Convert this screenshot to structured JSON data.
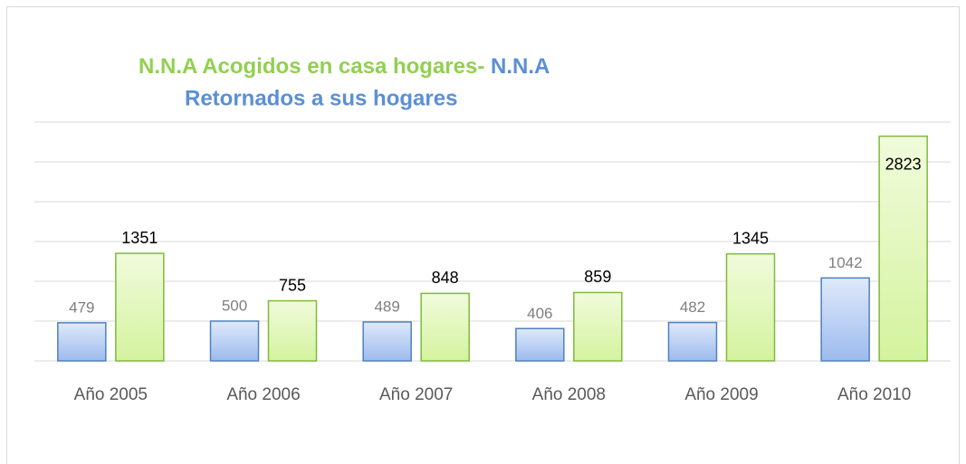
{
  "chart_data": {
    "type": "bar",
    "title": [
      {
        "text": "N.N.A Acogidos en casa hogares-",
        "color": "#92d050"
      },
      {
        "text": "N.N.A",
        "color": "#5b8fd6"
      },
      {
        "text": "Retornados a sus hogares",
        "color": "#5b8fd6"
      }
    ],
    "categories": [
      "Año 2005",
      "Año 2006",
      "Año 2007",
      "Año 2008",
      "Año 2009",
      "Año 2010"
    ],
    "series": [
      {
        "color": "#4f81bd",
        "values": [
          479,
          500,
          489,
          406,
          482,
          1042
        ]
      },
      {
        "color": "#7fba3c",
        "values": [
          1351,
          755,
          848,
          859,
          1345,
          2823
        ]
      }
    ],
    "ylim": [
      0,
      3000
    ],
    "yticks": [
      0,
      500,
      1000,
      1500,
      2000,
      2500,
      3000
    ],
    "grid": true
  }
}
